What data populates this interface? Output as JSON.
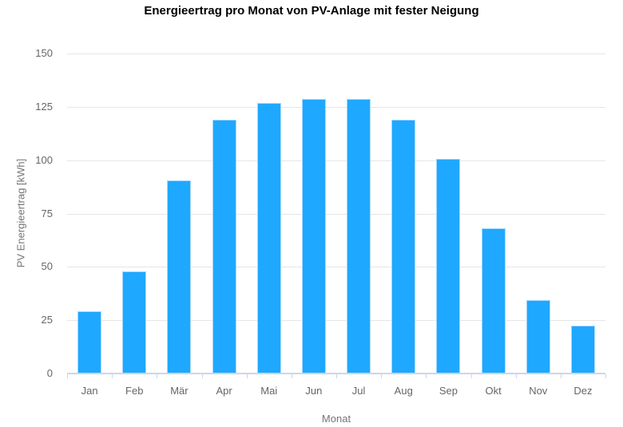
{
  "chart_data": {
    "type": "bar",
    "title": "Energieertrag pro Monat von PV-Anlage mit fester Neigung",
    "xlabel": "Monat",
    "ylabel": "PV Energieertrag [kWh]",
    "categories": [
      "Jan",
      "Feb",
      "Mär",
      "Apr",
      "Mai",
      "Jun",
      "Jul",
      "Aug",
      "Sep",
      "Okt",
      "Nov",
      "Dez"
    ],
    "values": [
      29,
      48,
      90.5,
      119,
      127,
      128.5,
      128.5,
      119,
      100.5,
      68,
      34.5,
      22.5
    ],
    "ylim": [
      0,
      150
    ],
    "yticks": [
      0,
      25,
      50,
      75,
      100,
      125,
      150
    ],
    "grid": true,
    "legend": "none",
    "colors": {
      "bar_fill": "#1fa8ff",
      "bar_border": "#a6d9ff",
      "gridline": "#e6e6e6",
      "axis_line": "#ccd6eb",
      "tick_text": "#666666",
      "axis_title_text": "#757575",
      "title_text": "#000000",
      "background": "#ffffff"
    }
  }
}
